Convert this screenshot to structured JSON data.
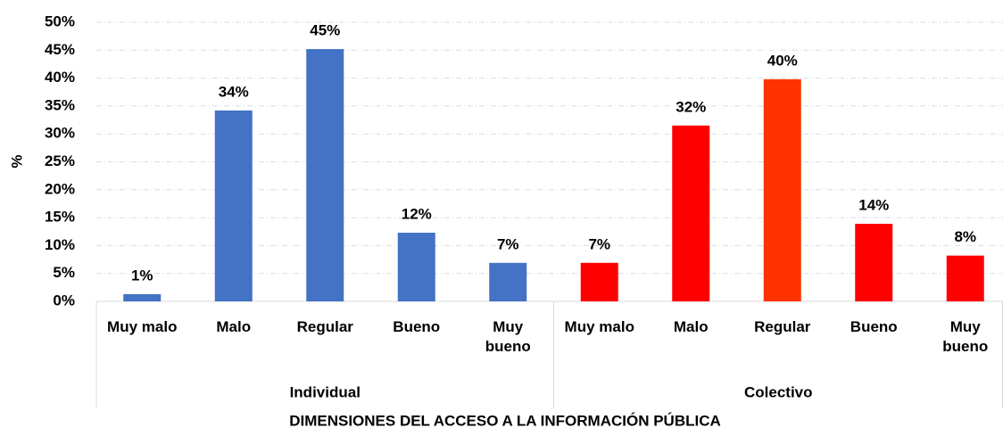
{
  "chart_data": {
    "type": "bar",
    "x_label": "DIMENSIONES DEL ACCESO A LA INFORMACIÓN PÚBLICA",
    "y_label": "%",
    "groups": [
      {
        "name": "Individual",
        "categories": [
          "Muy malo",
          "Malo",
          "Regular",
          "Bueno",
          "Muy bueno"
        ],
        "values": [
          1.3,
          34.2,
          45.2,
          12.3,
          6.9
        ],
        "value_labels": [
          "1%",
          "34%",
          "45%",
          "12%",
          "7%"
        ],
        "colors": [
          "#4472c4",
          "#4472c4",
          "#4472c4",
          "#4472c4",
          "#4472c4"
        ]
      },
      {
        "name": "Colectivo",
        "categories": [
          "Muy malo",
          "Malo",
          "Regular",
          "Bueno",
          "Muy bueno"
        ],
        "values": [
          6.9,
          31.5,
          39.8,
          13.9,
          8.2
        ],
        "value_labels": [
          "7%",
          "32%",
          "40%",
          "14%",
          "8%"
        ],
        "colors": [
          "#ff0000",
          "#ff0000",
          "#ff3300",
          "#ff0000",
          "#ff0000"
        ]
      }
    ],
    "ylim": [
      0,
      50
    ],
    "yticks": [
      {
        "value": 0,
        "label": "0%"
      },
      {
        "value": 5,
        "label": "5%"
      },
      {
        "value": 10,
        "label": "10%"
      },
      {
        "value": 15,
        "label": "15%"
      },
      {
        "value": 20,
        "label": "20%"
      },
      {
        "value": 25,
        "label": "25%"
      },
      {
        "value": 30,
        "label": "30%"
      },
      {
        "value": 35,
        "label": "35%"
      },
      {
        "value": 40,
        "label": "40%"
      },
      {
        "value": 45,
        "label": "45%"
      },
      {
        "value": 50,
        "label": "50%"
      }
    ],
    "grid": true
  }
}
